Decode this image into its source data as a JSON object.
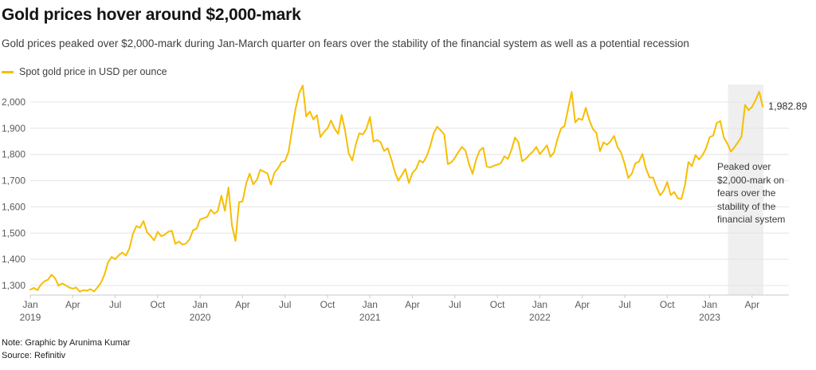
{
  "header": {
    "title": "Gold prices hover around $2,000-mark",
    "subtitle": "Gold prices peaked over $2,000-mark during Jan-March quarter on fears over the stability of the financial system as well as a potential recession",
    "legend_label": "Spot gold price in USD per ounce"
  },
  "footer": {
    "note": "Note: Graphic by Arunima Kumar",
    "source": "Source: Refinitiv"
  },
  "chart_data": {
    "type": "line",
    "title": "Gold prices hover around $2,000-mark",
    "ylabel": "Spot gold price in USD per ounce",
    "xlabel": "",
    "grid": true,
    "x_start": "Jan 2019",
    "x_end": "Apr 2023",
    "x_domain_months": [
      0,
      53.6
    ],
    "ylim": [
      1263,
      2075
    ],
    "yticks": [
      1300,
      1400,
      1500,
      1600,
      1700,
      1800,
      1900,
      2000
    ],
    "xticks": [
      {
        "t": 0,
        "label": "Jan",
        "year": "2019"
      },
      {
        "t": 3,
        "label": "Apr"
      },
      {
        "t": 6,
        "label": "Jul"
      },
      {
        "t": 9,
        "label": "Oct"
      },
      {
        "t": 12,
        "label": "Jan",
        "year": "2020"
      },
      {
        "t": 15,
        "label": "Apr"
      },
      {
        "t": 18,
        "label": "Jul"
      },
      {
        "t": 21,
        "label": "Oct"
      },
      {
        "t": 24,
        "label": "Jan",
        "year": "2021"
      },
      {
        "t": 27,
        "label": "Apr"
      },
      {
        "t": 30,
        "label": "Jul"
      },
      {
        "t": 33,
        "label": "Oct"
      },
      {
        "t": 36,
        "label": "Jan",
        "year": "2022"
      },
      {
        "t": 39,
        "label": "Apr"
      },
      {
        "t": 42,
        "label": "Jul"
      },
      {
        "t": 45,
        "label": "Oct"
      },
      {
        "t": 48,
        "label": "Jan",
        "year": "2023"
      },
      {
        "t": 51,
        "label": "Apr"
      }
    ],
    "series": [
      {
        "name": "Spot gold price in USD per ounce",
        "color": "#F7BE00",
        "step_months": 0.25,
        "values": [
          1284,
          1291,
          1282,
          1303,
          1316,
          1322,
          1341,
          1328,
          1299,
          1308,
          1301,
          1292,
          1288,
          1292,
          1276,
          1282,
          1280,
          1286,
          1277,
          1293,
          1311,
          1342,
          1389,
          1409,
          1400,
          1415,
          1426,
          1414,
          1440,
          1497,
          1527,
          1520,
          1546,
          1503,
          1489,
          1472,
          1505,
          1488,
          1494,
          1505,
          1509,
          1459,
          1468,
          1456,
          1460,
          1476,
          1511,
          1517,
          1552,
          1557,
          1562,
          1589,
          1574,
          1584,
          1643,
          1585,
          1674,
          1529,
          1470,
          1618,
          1621,
          1689,
          1727,
          1686,
          1702,
          1741,
          1735,
          1728,
          1685,
          1731,
          1747,
          1771,
          1775,
          1810,
          1897,
          1976,
          2035,
          2063,
          1945,
          1964,
          1934,
          1950,
          1866,
          1886,
          1900,
          1930,
          1899,
          1879,
          1951,
          1889,
          1804,
          1777,
          1838,
          1881,
          1876,
          1898,
          1943,
          1849,
          1855,
          1847,
          1813,
          1824,
          1784,
          1734,
          1700,
          1721,
          1745,
          1691,
          1730,
          1744,
          1777,
          1769,
          1792,
          1831,
          1881,
          1906,
          1892,
          1877,
          1763,
          1770,
          1787,
          1810,
          1829,
          1814,
          1763,
          1726,
          1781,
          1815,
          1826,
          1754,
          1750,
          1757,
          1761,
          1767,
          1793,
          1783,
          1818,
          1865,
          1845,
          1774,
          1783,
          1798,
          1810,
          1829,
          1801,
          1817,
          1835,
          1791,
          1808,
          1859,
          1899,
          1909,
          1974,
          2039,
          1922,
          1937,
          1932,
          1978,
          1931,
          1897,
          1883,
          1812,
          1846,
          1837,
          1851,
          1871,
          1827,
          1807,
          1763,
          1710,
          1727,
          1766,
          1772,
          1802,
          1747,
          1712,
          1712,
          1675,
          1644,
          1661,
          1695,
          1645,
          1657,
          1633,
          1630,
          1682,
          1771,
          1755,
          1798,
          1781,
          1798,
          1824,
          1866,
          1872,
          1920,
          1928,
          1865,
          1842,
          1811,
          1827,
          1847,
          1868,
          1989,
          1969,
          1982,
          2008,
          2040,
          1982.89
        ]
      }
    ],
    "last_value": 1982.89,
    "last_value_label": "1,982.89",
    "annotation": "Peaked over $2,000-mark on fears over the stability of the financial system",
    "highlight_band": {
      "from_month": 49.3,
      "to_month": 51.8,
      "color": "#efefef"
    },
    "colors": {
      "line": "#F7BE00",
      "grid": "#e4e4e4",
      "axis": "#c9c9c9",
      "tick_text": "#5a5a5a",
      "last_value_text": "#333333"
    }
  }
}
